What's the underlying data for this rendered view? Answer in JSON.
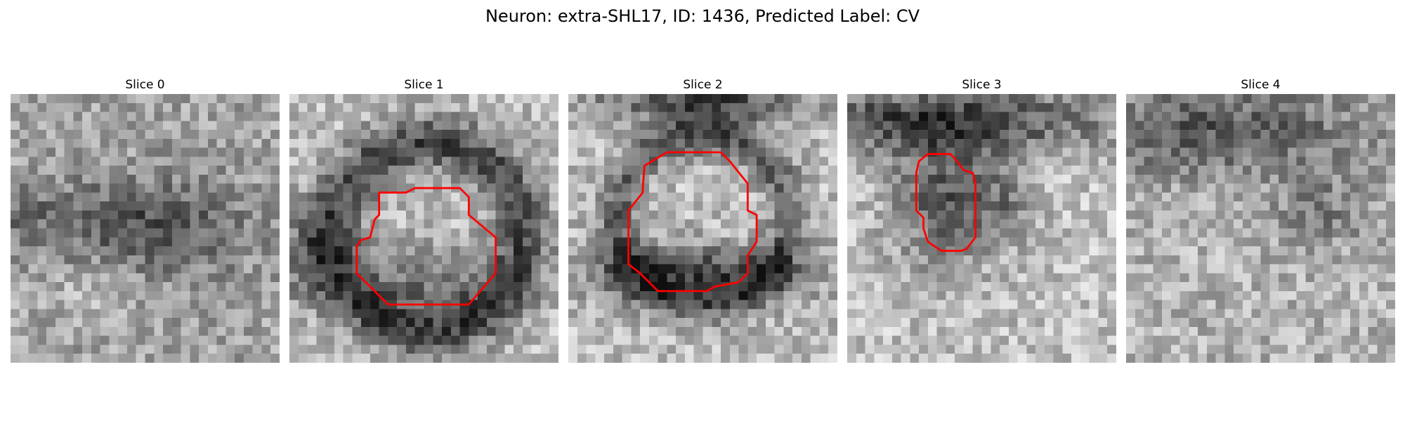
{
  "figure": {
    "title": "Neuron: extra-SHL17, ID: 1436, Predicted Label: CV"
  },
  "colors": {
    "contour": "#ff0000",
    "colormap": "gray"
  },
  "slices": [
    {
      "title": "Slice 0",
      "has_contour": false
    },
    {
      "title": "Slice 1",
      "has_contour": true
    },
    {
      "title": "Slice 2",
      "has_contour": true
    },
    {
      "title": "Slice 3",
      "has_contour": true
    },
    {
      "title": "Slice 4",
      "has_contour": false
    }
  ]
}
